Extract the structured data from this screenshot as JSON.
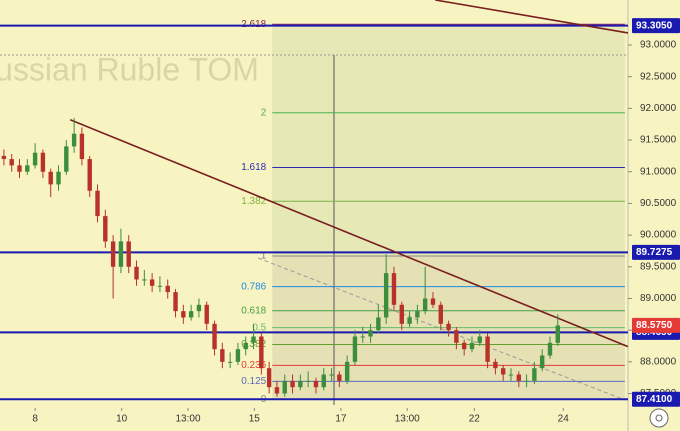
{
  "chart_data": {
    "type": "candlestick",
    "watermark": "Russian Ruble TOM",
    "ylim": [
      87.24,
      93.71
    ],
    "xlim": [
      -0.5,
      80
    ],
    "up_color": "#3c8d3c",
    "down_color": "#b8322a",
    "yticks": [
      {
        "value": 93,
        "label": "93.0000"
      },
      {
        "value": 92.5,
        "label": "92.5000"
      },
      {
        "value": 92,
        "label": "92.0000"
      },
      {
        "value": 91.5,
        "label": "91.5000"
      },
      {
        "value": 91,
        "label": "91.0000"
      },
      {
        "value": 90.5,
        "label": "90.5000"
      },
      {
        "value": 90,
        "label": "90.0000"
      },
      {
        "value": 89.5,
        "label": "89.5000"
      },
      {
        "value": 89,
        "label": "89.0000"
      },
      {
        "value": 88.5,
        "label": "88.5000"
      },
      {
        "value": 88,
        "label": "88.0000"
      },
      {
        "value": 87.5,
        "label": "87.5000"
      }
    ],
    "xticks": [
      {
        "value": 4,
        "label": "8"
      },
      {
        "value": 15.1,
        "label": "10"
      },
      {
        "value": 23.6,
        "label": "13:00"
      },
      {
        "value": 32.1,
        "label": "15"
      },
      {
        "value": 43.2,
        "label": "17"
      },
      {
        "value": 51.7,
        "label": "13:00"
      },
      {
        "value": 60.3,
        "label": "22"
      },
      {
        "value": 71.7,
        "label": "24"
      }
    ],
    "candles": [
      [
        91.25,
        91.35,
        91.1,
        91.2
      ],
      [
        91.2,
        91.28,
        91.0,
        91.1
      ],
      [
        91.1,
        91.2,
        90.9,
        91.0
      ],
      [
        91.0,
        91.2,
        90.95,
        91.1
      ],
      [
        91.1,
        91.45,
        91.05,
        91.3
      ],
      [
        91.3,
        91.35,
        90.9,
        91.0
      ],
      [
        91.0,
        91.05,
        90.6,
        90.8
      ],
      [
        90.8,
        91.1,
        90.7,
        91.0
      ],
      [
        91.0,
        91.5,
        90.95,
        91.4
      ],
      [
        91.4,
        91.85,
        91.3,
        91.6
      ],
      [
        91.6,
        91.7,
        91.1,
        91.2
      ],
      [
        91.2,
        91.25,
        90.6,
        90.7
      ],
      [
        90.7,
        90.8,
        90.2,
        90.3
      ],
      [
        90.3,
        90.4,
        89.8,
        89.9
      ],
      [
        89.9,
        90.0,
        89.0,
        89.5
      ],
      [
        89.5,
        90.1,
        89.4,
        89.9
      ],
      [
        89.9,
        90.0,
        89.4,
        89.5
      ],
      [
        89.5,
        89.6,
        89.2,
        89.3
      ],
      [
        89.3,
        89.45,
        89.2,
        89.3
      ],
      [
        89.3,
        89.4,
        89.1,
        89.2
      ],
      [
        89.2,
        89.35,
        89.1,
        89.2
      ],
      [
        89.2,
        89.3,
        89.0,
        89.1
      ],
      [
        89.1,
        89.15,
        88.7,
        88.8
      ],
      [
        88.8,
        88.9,
        88.6,
        88.7
      ],
      [
        88.7,
        88.9,
        88.65,
        88.8
      ],
      [
        88.8,
        89.0,
        88.7,
        88.9
      ],
      [
        88.9,
        88.95,
        88.5,
        88.6
      ],
      [
        88.6,
        88.65,
        88.1,
        88.2
      ],
      [
        88.2,
        88.3,
        87.9,
        88.0
      ],
      [
        88.0,
        88.15,
        87.9,
        88.0
      ],
      [
        88.0,
        88.3,
        87.95,
        88.2
      ],
      [
        88.2,
        88.4,
        88.1,
        88.3
      ],
      [
        88.3,
        88.6,
        88.2,
        88.4
      ],
      [
        88.4,
        88.45,
        87.8,
        87.9
      ],
      [
        87.9,
        88.0,
        87.5,
        87.6
      ],
      [
        87.6,
        87.7,
        87.45,
        87.5
      ],
      [
        87.5,
        87.8,
        87.45,
        87.7
      ],
      [
        87.7,
        87.8,
        87.5,
        87.6
      ],
      [
        87.6,
        87.8,
        87.55,
        87.7
      ],
      [
        87.7,
        87.85,
        87.6,
        87.7
      ],
      [
        87.7,
        87.75,
        87.5,
        87.6
      ],
      [
        87.6,
        87.9,
        87.55,
        87.8
      ],
      [
        87.8,
        87.9,
        87.7,
        87.8
      ],
      [
        87.8,
        87.85,
        87.6,
        87.7
      ],
      [
        87.7,
        88.1,
        87.65,
        88.0
      ],
      [
        88.0,
        88.5,
        87.95,
        88.4
      ],
      [
        88.4,
        88.55,
        88.3,
        88.4
      ],
      [
        88.4,
        88.6,
        88.3,
        88.5
      ],
      [
        88.5,
        88.9,
        88.45,
        88.7
      ],
      [
        88.7,
        89.7,
        88.6,
        89.4
      ],
      [
        89.4,
        89.5,
        88.8,
        88.9
      ],
      [
        88.9,
        88.95,
        88.5,
        88.6
      ],
      [
        88.6,
        88.8,
        88.55,
        88.7
      ],
      [
        88.7,
        88.9,
        88.6,
        88.8
      ],
      [
        88.8,
        89.5,
        88.75,
        89.0
      ],
      [
        89.0,
        89.1,
        88.85,
        88.9
      ],
      [
        88.9,
        88.95,
        88.5,
        88.6
      ],
      [
        88.6,
        88.65,
        88.4,
        88.5
      ],
      [
        88.5,
        88.55,
        88.2,
        88.3
      ],
      [
        88.3,
        88.35,
        88.1,
        88.2
      ],
      [
        88.2,
        88.4,
        88.15,
        88.3
      ],
      [
        88.3,
        88.5,
        88.25,
        88.4
      ],
      [
        88.4,
        88.45,
        87.9,
        88.0
      ],
      [
        88.0,
        88.05,
        87.8,
        87.9
      ],
      [
        87.9,
        87.95,
        87.7,
        87.8
      ],
      [
        87.8,
        87.9,
        87.7,
        87.8
      ],
      [
        87.8,
        87.85,
        87.6,
        87.7
      ],
      [
        87.7,
        87.8,
        87.6,
        87.7
      ],
      [
        87.7,
        88.0,
        87.65,
        87.9
      ],
      [
        87.9,
        88.2,
        87.85,
        88.1
      ],
      [
        88.1,
        88.4,
        88.05,
        88.3
      ],
      [
        88.3,
        88.75,
        88.25,
        88.575
      ]
    ],
    "fib": {
      "start": 87.41,
      "end": 89.67,
      "from": 34.4,
      "to": 79.6,
      "levels": [
        {
          "ratio": 2.618,
          "color": "#8b2252"
        },
        {
          "ratio": 2,
          "color": "#4caf50"
        },
        {
          "ratio": 1.618,
          "color": "#2c2cb4"
        },
        {
          "ratio": 1.382,
          "color": "#7cb342"
        },
        {
          "ratio": 1,
          "color": "#888888"
        },
        {
          "ratio": 0.786,
          "color": "#1e88e5"
        },
        {
          "ratio": 0.618,
          "color": "#43a047"
        },
        {
          "ratio": 0.5,
          "color": "#66bb6a"
        },
        {
          "ratio": 0.382,
          "color": "#5f9e2f"
        },
        {
          "ratio": 0.236,
          "color": "#e53935"
        },
        {
          "ratio": 0.125,
          "color": "#5c6bc0"
        },
        {
          "ratio": 0,
          "color": "#888888"
        }
      ]
    },
    "trendlines": [
      {
        "x": [
          8.5,
          80
        ],
        "y": [
          91.82,
          88.24
        ],
        "color": "#7a1f1f"
      },
      {
        "x": [
          55.3,
          80
        ],
        "y": [
          93.71,
          93.19
        ],
        "color": "#7a1f1f"
      }
    ],
    "levels": [
      {
        "value": 93.305,
        "label": "93.3050",
        "color": "#1a1ab0"
      },
      {
        "value": 89.7275,
        "label": "89.7275",
        "color": "#1a1ab0"
      },
      {
        "value": 88.465,
        "label": "88.4650",
        "color": "#1a1ab0"
      },
      {
        "value": 87.41,
        "label": "87.4100",
        "color": "#1a1ab0"
      }
    ],
    "last": {
      "value": 88.575,
      "label": "88.5750",
      "color": "#e53935"
    }
  }
}
